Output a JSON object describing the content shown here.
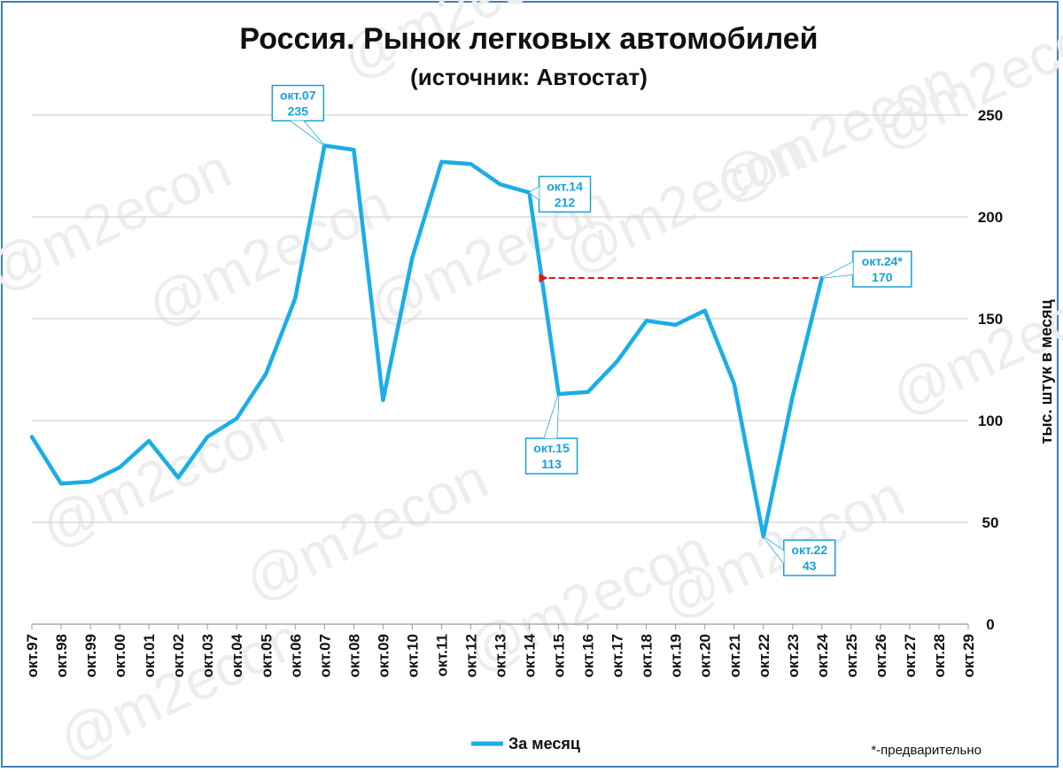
{
  "chart_data": {
    "type": "line",
    "title": "Россия. Рынок легковых автомобилей",
    "subtitle": "(источник: Автостат)",
    "ylabel": "тыс. штук в месяц",
    "ylim": [
      0,
      250
    ],
    "yticks": [
      "0",
      "50",
      "100",
      "150",
      "200",
      "250"
    ],
    "grid": true,
    "legend_position": "bottom-center",
    "categories": [
      "окт.97",
      "окт.98",
      "окт.99",
      "окт.00",
      "окт.01",
      "окт.02",
      "окт.03",
      "окт.04",
      "окт.05",
      "окт.06",
      "окт.07",
      "окт.08",
      "окт.09",
      "окт.10",
      "окт.11",
      "окт.12",
      "окт.13",
      "окт.14",
      "окт.15",
      "окт.16",
      "окт.17",
      "окт.18",
      "окт.19",
      "окт.20",
      "окт.21",
      "окт.22",
      "окт.23",
      "окт.24",
      "окт.25",
      "окт.26",
      "окт.27",
      "окт.28",
      "окт.29"
    ],
    "series": [
      {
        "name": "За месяц",
        "color": "#1aaee5",
        "values": [
          92,
          69,
          70,
          77,
          90,
          72,
          92,
          101,
          123,
          160,
          235,
          233,
          110,
          180,
          227,
          226,
          216,
          212,
          113,
          114,
          129,
          149,
          147,
          154,
          118,
          43,
          112,
          170,
          null,
          null,
          null,
          null,
          null
        ]
      }
    ],
    "annotations": [
      {
        "category": "окт.07",
        "label": "окт.07",
        "value": "235"
      },
      {
        "category": "окт.14",
        "label": "окт.14",
        "value": "212"
      },
      {
        "category": "окт.15",
        "label": "окт.15",
        "value": "113"
      },
      {
        "category": "окт.22",
        "label": "окт.22",
        "value": "43"
      },
      {
        "category": "окт.24",
        "label": "окт.24*",
        "value": "170"
      }
    ],
    "reference_arrow": {
      "from": "окт.24",
      "to": "окт.14",
      "value": 170,
      "color": "#e8101a"
    },
    "watermark": "@m2econ",
    "footnote": "*-предварительно"
  }
}
